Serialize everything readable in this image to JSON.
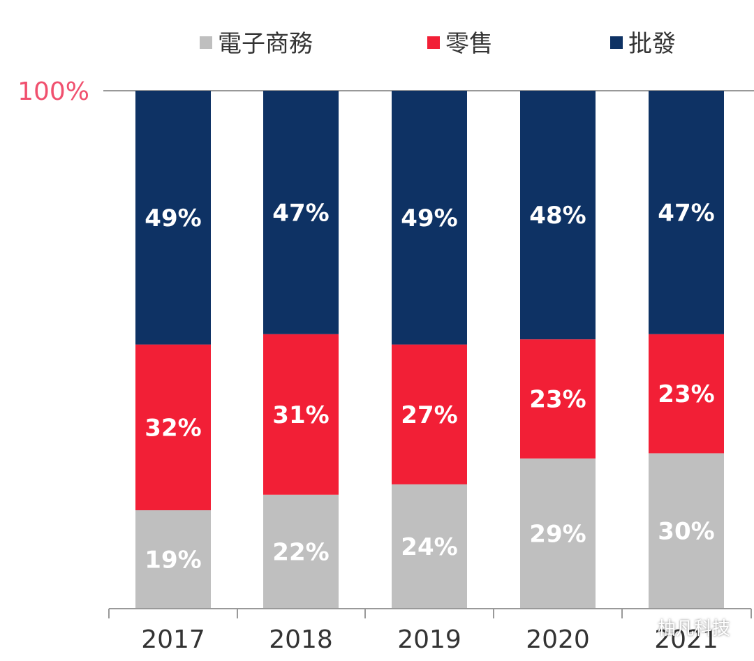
{
  "chart_data": {
    "type": "bar",
    "stacked": true,
    "categories": [
      "2017",
      "2018",
      "2019",
      "2020",
      "2021"
    ],
    "series": [
      {
        "name": "電子商務",
        "color": "#bfbfbf",
        "label_color": "#ffffff",
        "values": [
          19,
          22,
          24,
          29,
          30
        ]
      },
      {
        "name": "零售",
        "color": "#f21f36",
        "label_color": "#ffffff",
        "values": [
          32,
          31,
          27,
          23,
          23
        ]
      },
      {
        "name": "批發",
        "color": "#0e3264",
        "label_color": "#ffffff",
        "values": [
          49,
          47,
          49,
          48,
          47
        ]
      }
    ],
    "y_max_label": "100%",
    "y_max_label_color": "#f0506e",
    "value_suffix": "%",
    "ylim": [
      0,
      100
    ],
    "legend_position": "top",
    "grid": false
  },
  "watermark": {
    "icon": "wechat-icon",
    "text": "柚凡科技"
  }
}
